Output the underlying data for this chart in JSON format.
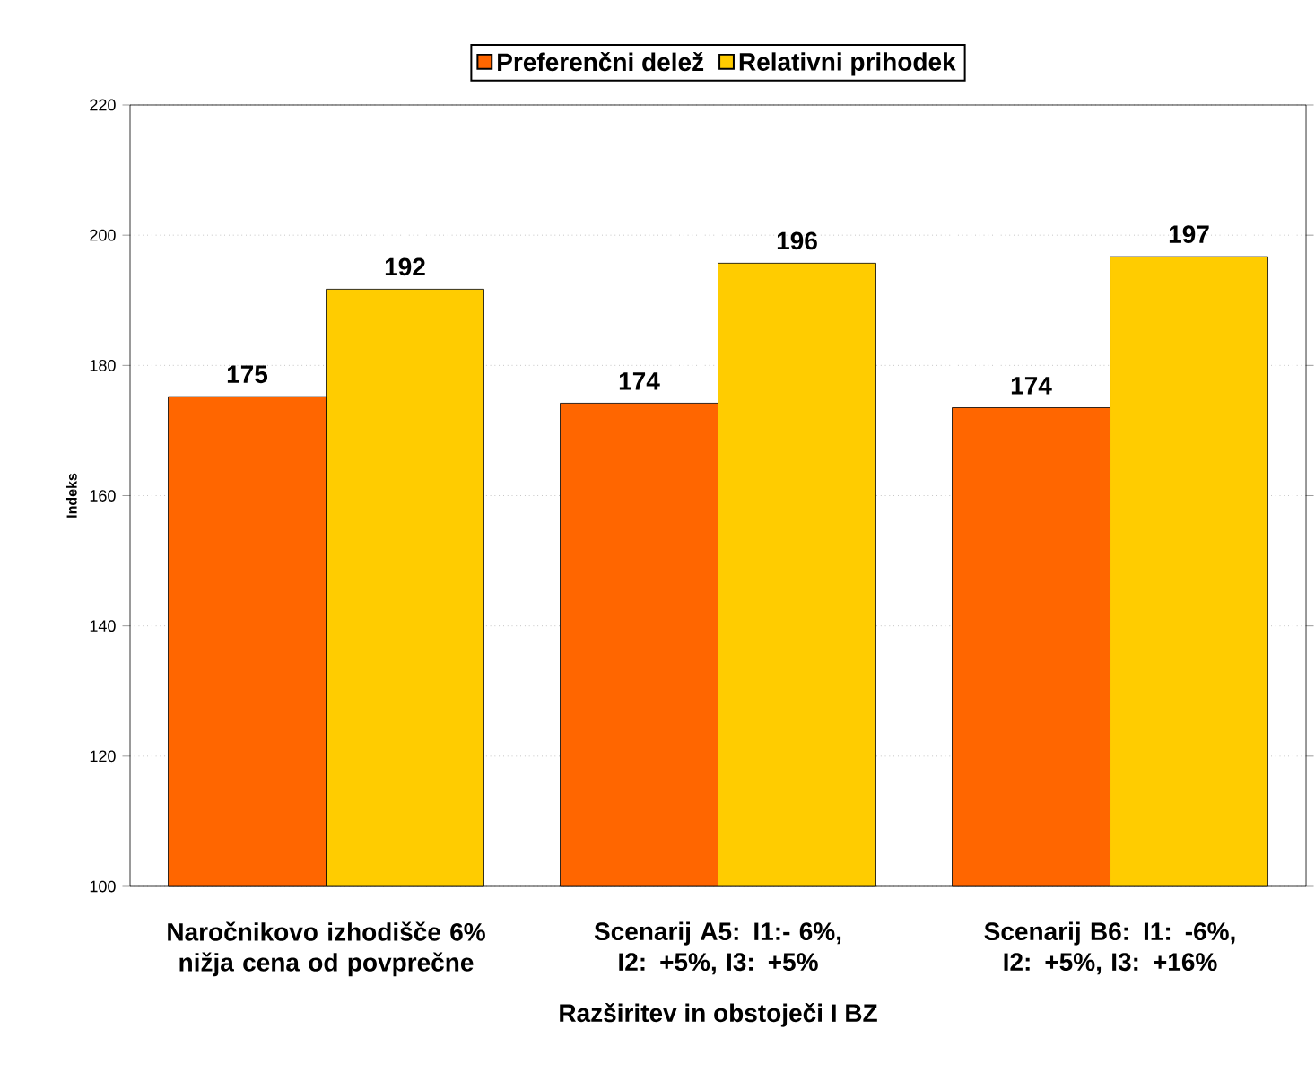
{
  "chart_data": {
    "type": "bar",
    "xlabel": "Razširitev in obstoječi I BZ",
    "ylabel": "Indeks",
    "categories": [
      "Naročnikovo izhodišče 6% nižja cena od povprečne",
      "Scenarij A5: I1:- 6%, I2: +5%, I3: +5%",
      "Scenarij B6: I1: -6%, I2: +5%, I3: +16%"
    ],
    "series": [
      {
        "name": "Preferenčni delež",
        "color": "#ff6600",
        "values": [
          175.2,
          174.2,
          173.5
        ],
        "value_labels": [
          "175",
          "174",
          "174"
        ]
      },
      {
        "name": "Relativni prihodek",
        "color": "#ffcc00",
        "values": [
          191.7,
          195.7,
          196.7
        ],
        "value_labels": [
          "192",
          "196",
          "197"
        ]
      }
    ],
    "ylim": [
      100,
      220
    ],
    "yticks": [
      100,
      120,
      140,
      160,
      180,
      200,
      220
    ],
    "grid": "y",
    "legend": "top"
  }
}
